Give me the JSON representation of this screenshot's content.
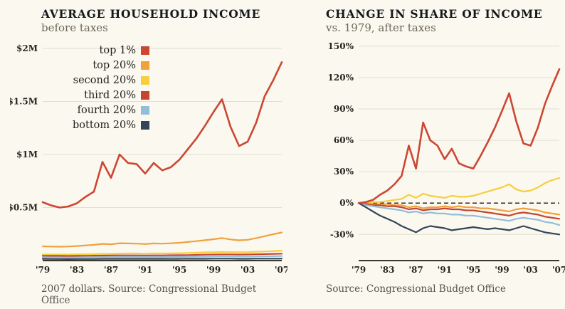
{
  "page": {
    "background": "#FBF8F0",
    "accent_red": "#CC4733"
  },
  "chart_data": [
    {
      "type": "line",
      "title": "AVERAGE HOUSEHOLD INCOME",
      "subtitle": "before taxes",
      "caption": "2007 dollars. Source: Congressional Budget Office",
      "x": [
        1979,
        1980,
        1981,
        1982,
        1983,
        1984,
        1985,
        1986,
        1987,
        1988,
        1989,
        1990,
        1991,
        1992,
        1993,
        1994,
        1995,
        1996,
        1997,
        1998,
        1999,
        2000,
        2001,
        2002,
        2003,
        2004,
        2005,
        2006,
        2007
      ],
      "x_ticks": [
        {
          "v": 1979,
          "label": "'79"
        },
        {
          "v": 1983,
          "label": "'83"
        },
        {
          "v": 1987,
          "label": "'87"
        },
        {
          "v": 1991,
          "label": "'91"
        },
        {
          "v": 1995,
          "label": "'95"
        },
        {
          "v": 1999,
          "label": "'99"
        },
        {
          "v": 2003,
          "label": "'03"
        },
        {
          "v": 2007,
          "label": "'07"
        }
      ],
      "y_ticks": [
        {
          "v": 0.5,
          "label": "$0.5M"
        },
        {
          "v": 1,
          "label": "$1M"
        },
        {
          "v": 1.5,
          "label": "$1.5M"
        },
        {
          "v": 2,
          "label": "$2M"
        }
      ],
      "ylim": [
        0,
        2.04
      ],
      "grid": true,
      "zero_dashed": false,
      "legend": true,
      "legend_position": "top-left-inside",
      "series": [
        {
          "name": "top 1%",
          "color": "#CC4733",
          "values": [
            0.55,
            0.52,
            0.5,
            0.51,
            0.54,
            0.6,
            0.65,
            0.93,
            0.78,
            1.0,
            0.92,
            0.91,
            0.82,
            0.92,
            0.85,
            0.88,
            0.95,
            1.05,
            1.15,
            1.27,
            1.4,
            1.52,
            1.26,
            1.08,
            1.12,
            1.3,
            1.55,
            1.7,
            1.87
          ]
        },
        {
          "name": "top 20%",
          "color": "#F0A13C",
          "values": [
            0.134,
            0.132,
            0.131,
            0.133,
            0.137,
            0.143,
            0.148,
            0.158,
            0.154,
            0.164,
            0.162,
            0.16,
            0.156,
            0.162,
            0.16,
            0.163,
            0.168,
            0.175,
            0.183,
            0.192,
            0.201,
            0.212,
            0.199,
            0.191,
            0.196,
            0.212,
            0.23,
            0.248,
            0.265
          ]
        },
        {
          "name": "second 20%",
          "color": "#F6CE3E",
          "values": [
            0.058,
            0.057,
            0.057,
            0.057,
            0.058,
            0.06,
            0.061,
            0.063,
            0.064,
            0.066,
            0.067,
            0.067,
            0.066,
            0.067,
            0.067,
            0.068,
            0.07,
            0.072,
            0.074,
            0.077,
            0.079,
            0.081,
            0.08,
            0.079,
            0.08,
            0.083,
            0.086,
            0.09,
            0.094
          ]
        },
        {
          "name": "third 20%",
          "color": "#C44532",
          "values": [
            0.045,
            0.044,
            0.044,
            0.043,
            0.044,
            0.045,
            0.046,
            0.047,
            0.048,
            0.049,
            0.049,
            0.049,
            0.048,
            0.049,
            0.049,
            0.05,
            0.051,
            0.052,
            0.054,
            0.056,
            0.057,
            0.058,
            0.058,
            0.057,
            0.058,
            0.06,
            0.061,
            0.063,
            0.065
          ]
        },
        {
          "name": "fourth 20%",
          "color": "#93BED8",
          "values": [
            0.031,
            0.03,
            0.03,
            0.029,
            0.03,
            0.031,
            0.031,
            0.032,
            0.032,
            0.033,
            0.033,
            0.033,
            0.032,
            0.033,
            0.033,
            0.034,
            0.034,
            0.035,
            0.036,
            0.037,
            0.038,
            0.039,
            0.038,
            0.038,
            0.038,
            0.039,
            0.04,
            0.041,
            0.043
          ]
        },
        {
          "name": "bottom 20%",
          "color": "#32455A",
          "values": [
            0.016,
            0.015,
            0.015,
            0.014,
            0.015,
            0.015,
            0.015,
            0.016,
            0.016,
            0.016,
            0.016,
            0.016,
            0.016,
            0.016,
            0.016,
            0.016,
            0.016,
            0.017,
            0.017,
            0.017,
            0.018,
            0.018,
            0.018,
            0.017,
            0.017,
            0.018,
            0.018,
            0.018,
            0.018
          ]
        }
      ]
    },
    {
      "type": "line",
      "title": "CHANGE IN SHARE OF INCOME",
      "subtitle": "vs. 1979, after taxes",
      "caption": "Source: Congressional Budget Office",
      "x": [
        1979,
        1980,
        1981,
        1982,
        1983,
        1984,
        1985,
        1986,
        1987,
        1988,
        1989,
        1990,
        1991,
        1992,
        1993,
        1994,
        1995,
        1996,
        1997,
        1998,
        1999,
        2000,
        2001,
        2002,
        2003,
        2004,
        2005,
        2006,
        2007
      ],
      "x_ticks": [
        {
          "v": 1979,
          "label": "'79"
        },
        {
          "v": 1983,
          "label": "'83"
        },
        {
          "v": 1987,
          "label": "'87"
        },
        {
          "v": 1991,
          "label": "'91"
        },
        {
          "v": 1995,
          "label": "'95"
        },
        {
          "v": 1999,
          "label": "'99"
        },
        {
          "v": 2003,
          "label": "'03"
        },
        {
          "v": 2007,
          "label": "'07"
        }
      ],
      "y_ticks": [
        {
          "v": -30,
          "label": "-30%"
        },
        {
          "v": 0,
          "label": "0%"
        },
        {
          "v": 30,
          "label": "30%"
        },
        {
          "v": 60,
          "label": "60%"
        },
        {
          "v": 90,
          "label": "90%"
        },
        {
          "v": 120,
          "label": "120%"
        },
        {
          "v": 150,
          "label": "150%"
        }
      ],
      "ylim": [
        -55,
        152
      ],
      "grid": true,
      "zero_dashed": true,
      "legend": false,
      "series": [
        {
          "name": "top 1%",
          "color": "#CC4733",
          "values": [
            0,
            1,
            3,
            8,
            12,
            18,
            26,
            55,
            33,
            77,
            60,
            55,
            42,
            52,
            38,
            35,
            33,
            45,
            58,
            72,
            88,
            105,
            78,
            57,
            55,
            72,
            95,
            112,
            128
          ]
        },
        {
          "name": "top 20%",
          "color": "#F6CE3E",
          "values": [
            0,
            0,
            1,
            1,
            2,
            3,
            4,
            8,
            5,
            9,
            7,
            6,
            5,
            7,
            6,
            6,
            7,
            9,
            11,
            13,
            15,
            18,
            13,
            11,
            12,
            15,
            19,
            22,
            24
          ]
        },
        {
          "name": "second 20%",
          "color": "#F0A13C",
          "values": [
            0,
            0,
            -1,
            -1,
            -1,
            -2,
            -2,
            -4,
            -3,
            -5,
            -4,
            -4,
            -3,
            -4,
            -3,
            -4,
            -4,
            -5,
            -5,
            -6,
            -7,
            -8,
            -6,
            -5,
            -6,
            -7,
            -9,
            -10,
            -11
          ]
        },
        {
          "name": "third 20%",
          "color": "#C44532",
          "values": [
            0,
            -1,
            -2,
            -2,
            -3,
            -3,
            -4,
            -6,
            -5,
            -7,
            -6,
            -6,
            -5,
            -6,
            -6,
            -7,
            -7,
            -8,
            -9,
            -10,
            -11,
            -12,
            -10,
            -9,
            -10,
            -11,
            -13,
            -14,
            -15
          ]
        },
        {
          "name": "fourth 20%",
          "color": "#93BED8",
          "values": [
            0,
            -2,
            -3,
            -4,
            -5,
            -6,
            -7,
            -9,
            -8,
            -10,
            -9,
            -10,
            -10,
            -11,
            -11,
            -12,
            -12,
            -13,
            -14,
            -15,
            -16,
            -17,
            -15,
            -14,
            -15,
            -16,
            -18,
            -19,
            -21
          ]
        },
        {
          "name": "bottom 20%",
          "color": "#32455A",
          "values": [
            0,
            -4,
            -8,
            -12,
            -15,
            -18,
            -22,
            -25,
            -28,
            -24,
            -22,
            -23,
            -24,
            -26,
            -25,
            -24,
            -23,
            -24,
            -25,
            -24,
            -25,
            -26,
            -24,
            -22,
            -24,
            -26,
            -28,
            -29,
            -30
          ]
        }
      ]
    }
  ]
}
